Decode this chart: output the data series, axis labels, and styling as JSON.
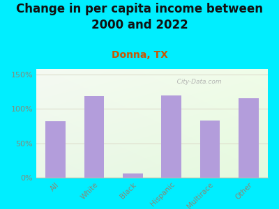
{
  "title": "Change in per capita income between\n2000 and 2022",
  "subtitle": "Donna, TX",
  "categories": [
    "All",
    "White",
    "Black",
    "Hispanic",
    "Multirace",
    "Other"
  ],
  "values": [
    82,
    118,
    6,
    120,
    83,
    115
  ],
  "bar_color": "#b39ddb",
  "title_fontsize": 12,
  "subtitle_fontsize": 10,
  "subtitle_color": "#cc5500",
  "title_color": "#111111",
  "background_color": "#00eeff",
  "ylabel_ticks": [
    0,
    50,
    100,
    150
  ],
  "ylabel_labels": [
    "0%",
    "50%",
    "100%",
    "150%"
  ],
  "ylim": [
    0,
    158
  ],
  "tick_color": "#888877",
  "watermark": "   City-Data.com",
  "watermark_color": "#aaaaaa",
  "grid_color": "#ddddcc"
}
